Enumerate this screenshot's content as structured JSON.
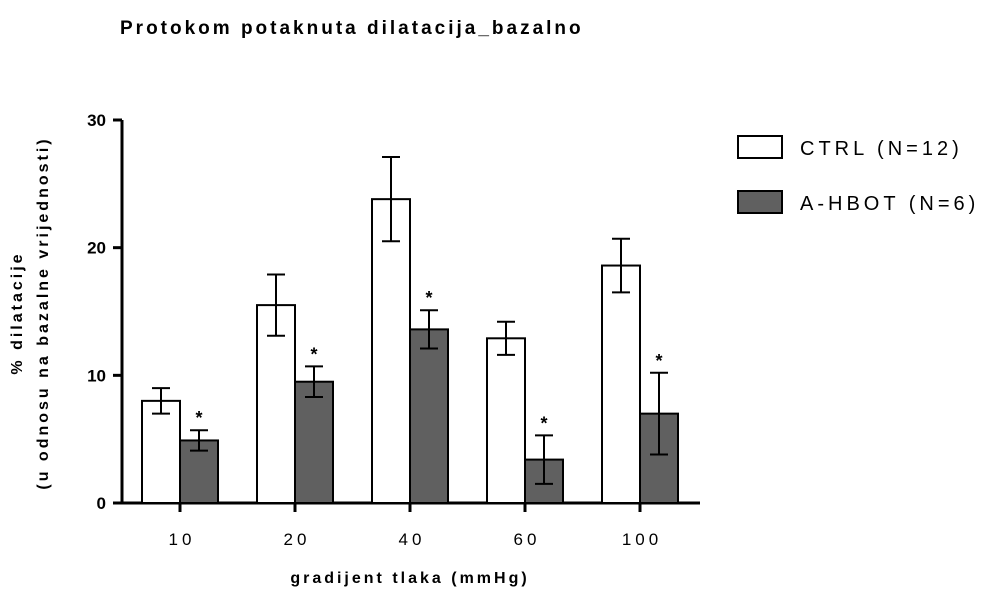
{
  "chart_data": {
    "type": "bar",
    "title": "Protokom potaknuta dilatacija_bazalno",
    "xlabel": "gradijent tlaka (mmHg)",
    "ylabel_line1": "% dilatacije",
    "ylabel_line2": "(u odnosu na bazalne vrijednosti)",
    "categories": [
      "10",
      "20",
      "40",
      "60",
      "100"
    ],
    "ylim": [
      0,
      30
    ],
    "yticks": [
      "0",
      "10",
      "20",
      "30"
    ],
    "yticks_values": [
      0,
      10,
      20,
      30
    ],
    "legend_position": "right",
    "series": [
      {
        "name": "CTRL (N=12)",
        "color": "#ffffff",
        "values": [
          8.0,
          15.5,
          23.8,
          12.9,
          18.6
        ],
        "error": [
          1.0,
          2.4,
          3.3,
          1.3,
          2.1
        ],
        "significance": [
          "",
          "",
          "",
          "",
          ""
        ]
      },
      {
        "name": "A-HBOT (N=6)",
        "color": "#606060",
        "values": [
          4.9,
          9.5,
          13.6,
          3.4,
          7.0
        ],
        "error": [
          0.8,
          1.2,
          1.5,
          1.9,
          3.2
        ],
        "significance": [
          "*",
          "*",
          "*",
          "*",
          "*"
        ]
      }
    ]
  }
}
